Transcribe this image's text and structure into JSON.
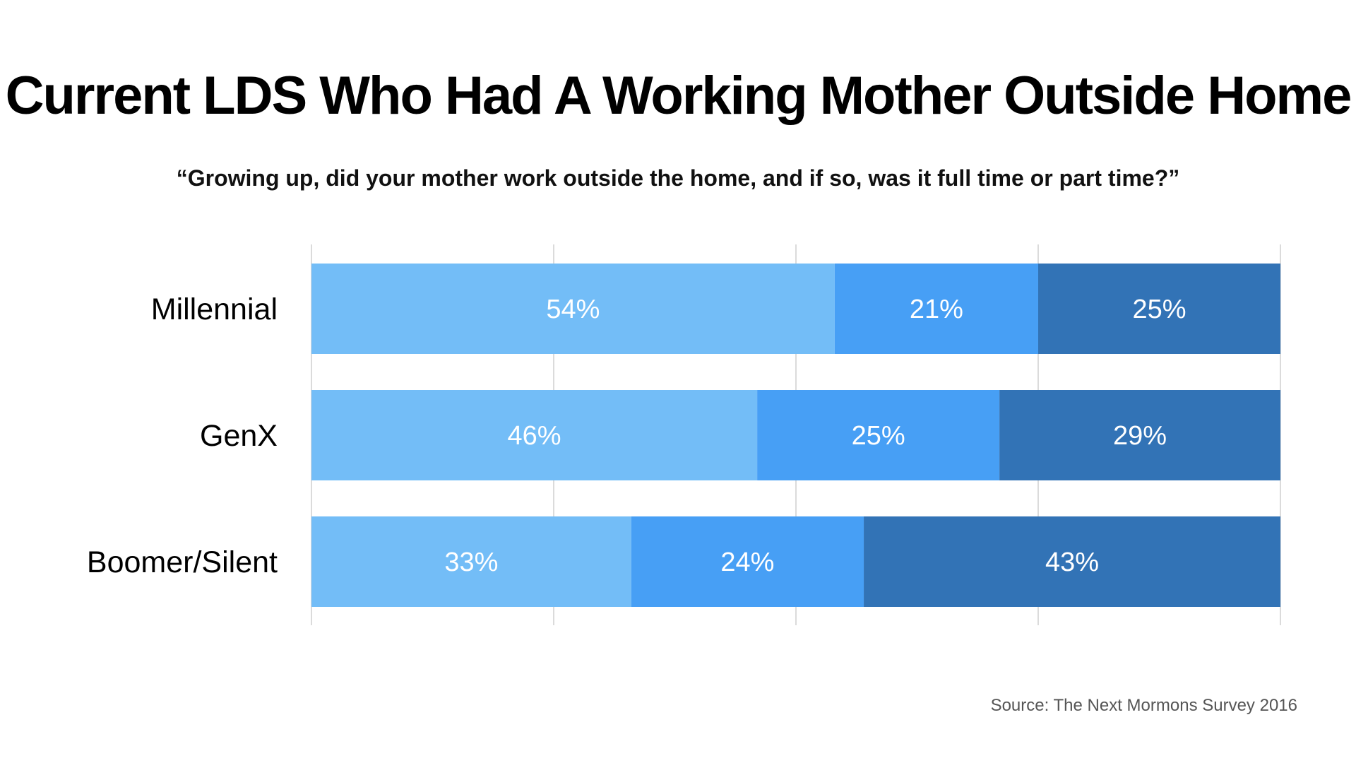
{
  "title": "Current LDS Who Had A Working Mother Outside Home",
  "subtitle": "“Growing up, did your mother work outside the home, and if so, was it full time or part time?”",
  "source": "Source: The Next Mormons Survey 2016",
  "colors": [
    "#73bdf7",
    "#479ff5",
    "#3273b6"
  ],
  "chart_data": {
    "type": "bar",
    "orientation": "horizontal",
    "stacked": true,
    "categories": [
      "Millennial",
      "GenX",
      "Boomer/Silent"
    ],
    "series": [
      {
        "values": [
          54,
          46,
          33
        ],
        "labels": [
          "54%",
          "46%",
          "33%"
        ]
      },
      {
        "values": [
          21,
          25,
          24
        ],
        "labels": [
          "21%",
          "25%",
          "24%"
        ]
      },
      {
        "values": [
          25,
          29,
          43
        ],
        "labels": [
          "25%",
          "29%",
          "43%"
        ]
      }
    ],
    "xlim": [
      0,
      100
    ],
    "grid": true,
    "legend": "none"
  }
}
